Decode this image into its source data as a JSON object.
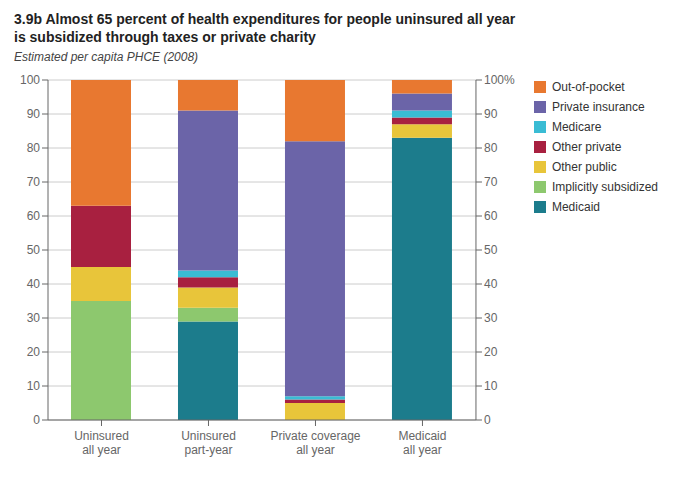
{
  "chart_data": {
    "type": "bar",
    "stacked": true,
    "title": "3.9b Almost 65 percent of health expenditures for people uninsured all year\nis subsidized through taxes or private charity",
    "subtitle": "Estimated per capita PHCE (2008)",
    "categories": [
      "Uninsured\nall year",
      "Uninsured\npart-year",
      "Private coverage\nall year",
      "Medicaid\nall year"
    ],
    "series": [
      {
        "name": "Medicaid",
        "color": "#1c7c8c",
        "values": [
          0,
          29,
          0,
          83
        ]
      },
      {
        "name": "Implicitly subsidized",
        "color": "#8dc86e",
        "values": [
          35,
          4,
          0,
          0
        ]
      },
      {
        "name": "Other public",
        "color": "#e8c53a",
        "values": [
          10,
          6,
          5,
          4
        ]
      },
      {
        "name": "Other private",
        "color": "#a82040",
        "values": [
          18,
          3,
          1,
          2
        ]
      },
      {
        "name": "Medicare",
        "color": "#3abcd4",
        "values": [
          0,
          2,
          1,
          2
        ]
      },
      {
        "name": "Private insurance",
        "color": "#6b64a8",
        "values": [
          0,
          47,
          75,
          5
        ]
      },
      {
        "name": "Out-of-pocket",
        "color": "#e87830",
        "values": [
          37,
          9,
          18,
          4
        ]
      }
    ],
    "ylim": [
      0,
      100
    ],
    "yticks": [
      0,
      10,
      20,
      30,
      40,
      50,
      60,
      70,
      80,
      90,
      100
    ],
    "y2lim": [
      0,
      100
    ],
    "y2ticks": [
      0,
      10,
      20,
      30,
      40,
      50,
      60,
      70,
      80,
      90,
      {
        "value": 100,
        "label": "100%"
      }
    ],
    "grid": true,
    "legend": "right"
  }
}
